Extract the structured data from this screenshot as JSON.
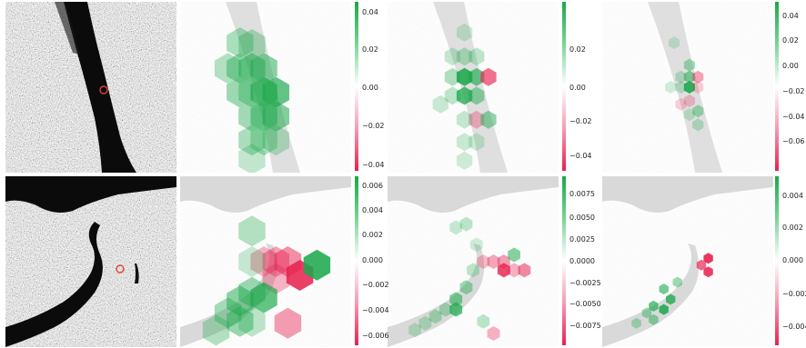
{
  "figure": {
    "rows": [
      {
        "panels": [
          {
            "kind": "sar-input",
            "marker_color": "#e0433a"
          },
          {
            "kind": "attribution",
            "colorbar_ticks": [
              "0.04",
              "0.02",
              "0.00",
              "−0.02",
              "−0.04"
            ],
            "vmax": 0.045,
            "hexes": [
              [
                0.35,
                0.24,
                0.012
              ],
              [
                0.42,
                0.25,
                0.01
              ],
              [
                0.35,
                0.39,
                0.016
              ],
              [
                0.42,
                0.39,
                0.018
              ],
              [
                0.49,
                0.39,
                0.02
              ],
              [
                0.28,
                0.39,
                0.01
              ],
              [
                0.56,
                0.53,
                0.03
              ],
              [
                0.49,
                0.53,
                0.028
              ],
              [
                0.35,
                0.53,
                0.015
              ],
              [
                0.42,
                0.53,
                0.012
              ],
              [
                0.49,
                0.67,
                0.02
              ],
              [
                0.56,
                0.67,
                0.022
              ],
              [
                0.42,
                0.67,
                0.014
              ],
              [
                0.42,
                0.81,
                0.012
              ],
              [
                0.49,
                0.81,
                0.01
              ],
              [
                0.56,
                0.81,
                0.008
              ],
              [
                0.42,
                0.92,
                0.006
              ]
            ]
          },
          {
            "kind": "attribution",
            "colorbar_ticks": [
              "0.02",
              "0.00",
              "−0.02",
              "−0.04"
            ],
            "vmax": 0.05,
            "hexes": [
              [
                0.45,
                0.18,
                0.004
              ],
              [
                0.38,
                0.32,
                0.006
              ],
              [
                0.45,
                0.32,
                0.01
              ],
              [
                0.52,
                0.32,
                0.008
              ],
              [
                0.38,
                0.44,
                0.012
              ],
              [
                0.45,
                0.44,
                0.045
              ],
              [
                0.52,
                0.44,
                0.03
              ],
              [
                0.59,
                0.44,
                -0.03
              ],
              [
                0.45,
                0.55,
                0.038
              ],
              [
                0.52,
                0.55,
                0.02
              ],
              [
                0.38,
                0.55,
                0.008
              ],
              [
                0.52,
                0.69,
                -0.01
              ],
              [
                0.59,
                0.69,
                0.02
              ],
              [
                0.45,
                0.69,
                0.006
              ],
              [
                0.45,
                0.82,
                0.005
              ],
              [
                0.52,
                0.82,
                0.004
              ],
              [
                0.45,
                0.93,
                0.004
              ],
              [
                0.31,
                0.6,
                0.005
              ]
            ]
          },
          {
            "kind": "attribution",
            "colorbar_ticks": [
              "0.04",
              "0.02",
              "0.00",
              "−0.02",
              "−0.04",
              "−0.06"
            ],
            "vmax": 0.065,
            "hexes": [
              [
                0.42,
                0.24,
                0.004
              ],
              [
                0.51,
                0.37,
                0.02
              ],
              [
                0.46,
                0.44,
                0.01
              ],
              [
                0.51,
                0.44,
                0.03
              ],
              [
                0.56,
                0.44,
                -0.02
              ],
              [
                0.46,
                0.5,
                0.008
              ],
              [
                0.51,
                0.5,
                0.06
              ],
              [
                0.56,
                0.5,
                -0.006
              ],
              [
                0.51,
                0.58,
                -0.008
              ],
              [
                0.56,
                0.64,
                0.02
              ],
              [
                0.51,
                0.66,
                0.006
              ],
              [
                0.56,
                0.72,
                0.01
              ],
              [
                0.46,
                0.6,
                -0.004
              ],
              [
                0.4,
                0.5,
                0.004
              ]
            ]
          }
        ]
      },
      {
        "panels": [
          {
            "kind": "sar-input",
            "marker_color": "#e0433a"
          },
          {
            "kind": "attribution",
            "colorbar_ticks": [
              "0.006",
              "0.004",
              "0.002",
              "0.000",
              "−0.002",
              "−0.004",
              "−0.006"
            ],
            "vmax": 0.0068,
            "hexes": [
              [
                0.42,
                0.32,
                0.0015
              ],
              [
                0.49,
                0.5,
                -0.0015
              ],
              [
                0.56,
                0.5,
                -0.0022
              ],
              [
                0.42,
                0.5,
                0.0008
              ],
              [
                0.63,
                0.5,
                -0.003
              ],
              [
                0.7,
                0.58,
                -0.006
              ],
              [
                0.8,
                0.52,
                0.006
              ],
              [
                0.56,
                0.6,
                -0.0015
              ],
              [
                0.42,
                0.68,
                0.0025
              ],
              [
                0.49,
                0.71,
                0.0045
              ],
              [
                0.35,
                0.73,
                0.003
              ],
              [
                0.28,
                0.8,
                0.002
              ],
              [
                0.35,
                0.85,
                0.0025
              ],
              [
                0.42,
                0.85,
                0.0012
              ],
              [
                0.21,
                0.9,
                0.0015
              ],
              [
                0.63,
                0.86,
                -0.0025
              ]
            ]
          },
          {
            "kind": "attribution",
            "colorbar_ticks": [
              "0.0075",
              "0.0050",
              "0.0025",
              "0.0000",
              "−0.0025",
              "−0.0050",
              "−0.0075"
            ],
            "vmax": 0.0085,
            "hexes": [
              [
                0.4,
                0.3,
                0.001
              ],
              [
                0.46,
                0.28,
                0.0015
              ],
              [
                0.52,
                0.4,
                0.0005
              ],
              [
                0.56,
                0.5,
                -0.0015
              ],
              [
                0.62,
                0.5,
                -0.0025
              ],
              [
                0.68,
                0.5,
                -0.003
              ],
              [
                0.74,
                0.46,
                0.004
              ],
              [
                0.8,
                0.55,
                -0.004
              ],
              [
                0.68,
                0.55,
                -0.007
              ],
              [
                0.74,
                0.55,
                -0.002
              ],
              [
                0.5,
                0.55,
                0.0015
              ],
              [
                0.46,
                0.65,
                0.003
              ],
              [
                0.4,
                0.72,
                0.0045
              ],
              [
                0.4,
                0.78,
                0.006
              ],
              [
                0.34,
                0.78,
                0.002
              ],
              [
                0.28,
                0.82,
                0.002
              ],
              [
                0.22,
                0.86,
                0.0015
              ],
              [
                0.16,
                0.9,
                0.0012
              ],
              [
                0.62,
                0.92,
                -0.002
              ],
              [
                0.56,
                0.85,
                0.0015
              ]
            ]
          },
          {
            "kind": "attribution",
            "colorbar_ticks": [
              "0.004",
              "0.002",
              "0.000",
              "−0.002",
              "−0.004"
            ],
            "vmax": 0.0045,
            "hexes": [
              [
                0.62,
                0.48,
                -0.0042
              ],
              [
                0.58,
                0.52,
                -0.003
              ],
              [
                0.62,
                0.56,
                -0.004
              ],
              [
                0.36,
                0.66,
                0.0025
              ],
              [
                0.4,
                0.72,
                0.0035
              ],
              [
                0.36,
                0.78,
                0.004
              ],
              [
                0.3,
                0.76,
                0.003
              ],
              [
                0.26,
                0.8,
                0.0015
              ],
              [
                0.3,
                0.84,
                0.0018
              ],
              [
                0.2,
                0.86,
                0.0012
              ],
              [
                0.44,
                0.62,
                0.0015
              ]
            ]
          }
        ]
      }
    ]
  }
}
